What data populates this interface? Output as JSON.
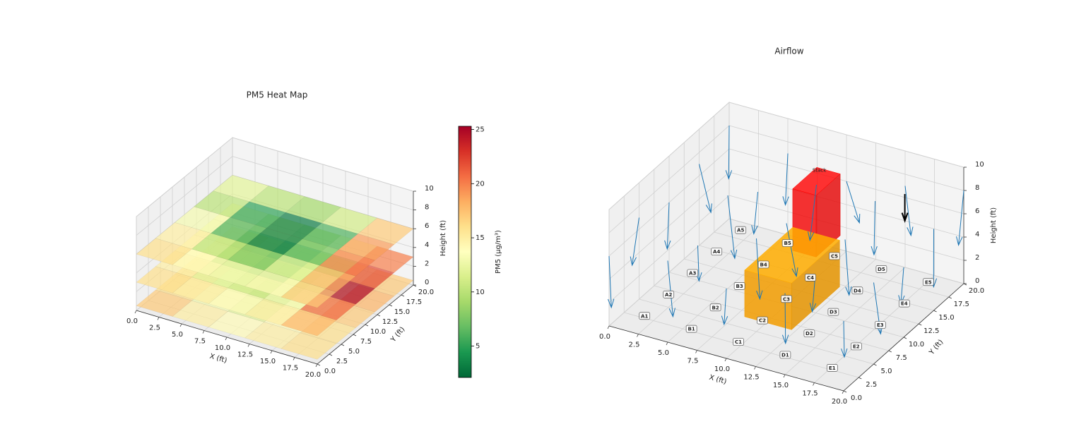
{
  "chart_data": [
    {
      "type": "heatmap3d",
      "title": "PM5 Heat Map",
      "xlabel": "X (ft)",
      "ylabel": "Y (ft)",
      "zlabel": "Height (ft)",
      "xlim": [
        0,
        20
      ],
      "ylim": [
        0,
        20
      ],
      "zlim": [
        0,
        10
      ],
      "xticks": [
        {
          "value": 0,
          "label": "0.0"
        },
        2.5,
        {
          "value": 5,
          "label": "5.0"
        },
        7.5,
        {
          "value": 10,
          "label": "10.0"
        },
        12.5,
        {
          "value": 15,
          "label": "15.0"
        },
        17.5,
        {
          "value": 20,
          "label": "20.0"
        }
      ],
      "yticks": [
        {
          "value": 0,
          "label": "0.0"
        },
        2.5,
        {
          "value": 5,
          "label": "5.0"
        },
        7.5,
        {
          "value": 10,
          "label": "10.0"
        },
        12.5,
        {
          "value": 15,
          "label": "15.0"
        },
        17.5,
        {
          "value": 20,
          "label": "20.0"
        }
      ],
      "zticks": [
        0,
        2,
        4,
        6,
        8,
        10
      ],
      "x_edges": [
        0,
        4,
        8,
        12,
        16,
        20
      ],
      "y_edges": [
        0,
        4,
        8,
        12,
        16,
        20
      ],
      "opacity": 0.7,
      "layers": [
        {
          "z": 0.5,
          "values": [
            [
              17,
              15,
              14,
              15,
              16
            ],
            [
              16,
              13,
              12,
              14,
              16
            ],
            [
              16,
              12,
              10,
              13,
              17
            ],
            [
              15,
              12,
              11,
              13,
              18
            ],
            [
              16,
              14,
              13,
              15,
              17
            ]
          ]
        },
        {
          "z": 3,
          "values": [
            [
              16,
              15,
              14,
              15,
              18
            ],
            [
              15,
              12,
              11,
              13,
              21
            ],
            [
              14,
              9,
              8,
              12,
              25
            ],
            [
              13,
              8,
              6,
              9,
              22
            ],
            [
              14,
              11,
              10,
              13,
              20
            ]
          ]
        },
        {
          "z": 6,
          "values": [
            [
              16,
              14,
              13,
              14,
              17
            ],
            [
              15,
              10,
              8,
              12,
              18
            ],
            [
              13,
              6,
              3,
              7,
              20
            ],
            [
              10,
              5,
              3,
              6,
              19
            ],
            [
              12,
              10,
              9,
              11,
              17
            ]
          ]
        }
      ],
      "colorbar": {
        "label": "PM5 (µg/m³)",
        "clim": [
          2.1,
          25.3
        ],
        "ticks": [
          5,
          10,
          15,
          20,
          25
        ],
        "colors": [
          "#006837",
          "#1a9850",
          "#66bd63",
          "#a6d96a",
          "#d9ef8b",
          "#ffffbf",
          "#fee08b",
          "#fdae61",
          "#f46d43",
          "#d73027",
          "#a50026"
        ]
      }
    },
    {
      "type": "quiver3d",
      "title": "Airflow",
      "xlabel": "X (ft)",
      "ylabel": "Y (ft)",
      "zlabel": "Height (ft)",
      "xlim": [
        0,
        20
      ],
      "ylim": [
        0,
        20
      ],
      "zlim": [
        0,
        10
      ],
      "xticks": [
        {
          "value": 0,
          "label": "0.0"
        },
        2.5,
        {
          "value": 5,
          "label": "5.0"
        },
        7.5,
        {
          "value": 10,
          "label": "10.0"
        },
        12.5,
        {
          "value": 15,
          "label": "15.0"
        },
        17.5,
        {
          "value": 20,
          "label": "20.0"
        }
      ],
      "yticks": [
        {
          "value": 0,
          "label": "0.0"
        },
        2.5,
        {
          "value": 5,
          "label": "5.0"
        },
        7.5,
        {
          "value": 10,
          "label": "10.0"
        },
        12.5,
        {
          "value": 15,
          "label": "15.0"
        },
        17.5,
        {
          "value": 20,
          "label": "20.0"
        }
      ],
      "zticks": [
        0,
        2,
        4,
        6,
        8,
        10
      ],
      "boxes": [
        {
          "name": "Stack",
          "x": [
            9,
            11
          ],
          "y": [
            13,
            17
          ],
          "z": [
            3,
            8.3
          ],
          "color": "#ff0000",
          "opacity": 0.8
        },
        {
          "x": [
            9,
            13
          ],
          "y": [
            5,
            13
          ],
          "z": [
            1,
            5
          ],
          "color": "#ffa500",
          "opacity": 0.85
        }
      ],
      "arrows": {
        "color": "#1f77b4",
        "x": [
          0,
          0,
          0,
          0,
          0,
          5,
          5,
          5,
          5,
          5,
          10,
          10,
          10,
          10,
          10,
          15,
          15,
          15,
          15,
          15,
          20,
          20,
          20,
          20,
          20
        ],
        "y": [
          0,
          5,
          10,
          15,
          20,
          0,
          5,
          10,
          15,
          20,
          0,
          5,
          10,
          15,
          20,
          0,
          5,
          10,
          15,
          20,
          0,
          5,
          10,
          15,
          20
        ],
        "z": [
          6,
          7,
          6,
          7,
          8,
          7,
          6,
          8,
          6,
          7,
          6,
          8,
          7,
          8,
          6,
          7,
          6,
          7,
          8,
          7,
          6,
          7,
          6,
          7,
          8
        ],
        "u": [
          0.5,
          -0.8,
          0.3,
          0.9,
          -0.4,
          0.6,
          -0.3,
          0.8,
          -0.6,
          0.2,
          -0.5,
          0.4,
          0.7,
          -0.2,
          0.9,
          0.3,
          -0.7,
          0.5,
          -0.4,
          0.6,
          -0.3,
          0.8,
          -0.5,
          0.4,
          -0.6
        ],
        "v": [
          -0.6,
          0.4,
          -0.9,
          0.2,
          0.7,
          -0.3,
          0.8,
          -0.4,
          0.5,
          -0.8,
          0.6,
          -0.2,
          0.3,
          -0.7,
          0.4,
          -0.5,
          0.9,
          -0.3,
          0.6,
          -0.2,
          0.7,
          -0.4,
          0.5,
          -0.8,
          0.3
        ],
        "w": [
          -4,
          -4.5,
          -3.5,
          -4,
          -5,
          -4.5,
          -3.5,
          -5,
          -4,
          -4,
          -3.5,
          -5,
          -4.5,
          -4.5,
          -3.5,
          -4,
          -3.5,
          -4.5,
          -5,
          -4,
          -3.5,
          -4,
          -3.5,
          -4.5,
          -5
        ]
      },
      "wind": {
        "x": 16,
        "y": 18,
        "z": 7.5,
        "u": 0,
        "v": 0,
        "w": -2.3,
        "color": "#000000"
      },
      "sensors": {
        "labels": [
          "A1",
          "A2",
          "A3",
          "A4",
          "A5",
          "B1",
          "B2",
          "B3",
          "B4",
          "B5",
          "C1",
          "C2",
          "C3",
          "C4",
          "C5",
          "D1",
          "D2",
          "D3",
          "D4",
          "D5",
          "E1",
          "E2",
          "E3",
          "E4",
          "E5"
        ],
        "x": [
          2,
          2,
          2,
          2,
          2,
          6,
          6,
          6,
          6,
          6,
          10,
          10,
          10,
          10,
          10,
          14,
          14,
          14,
          14,
          14,
          18,
          18,
          18,
          18,
          18
        ],
        "y": [
          2,
          6,
          10,
          14,
          18,
          2,
          6,
          10,
          14,
          18,
          2,
          6,
          10,
          14,
          18,
          2,
          6,
          10,
          14,
          18,
          2,
          6,
          10,
          14,
          18
        ],
        "z": [
          0.5,
          0.5,
          0.5,
          0.5,
          0.5,
          0.5,
          0.5,
          0.5,
          0.5,
          0.5,
          0.5,
          0.5,
          0.5,
          0.5,
          0.5,
          0.5,
          0.5,
          0.5,
          0.5,
          0.5,
          0.5,
          0.5,
          0.5,
          0.5,
          0.5
        ]
      }
    }
  ]
}
